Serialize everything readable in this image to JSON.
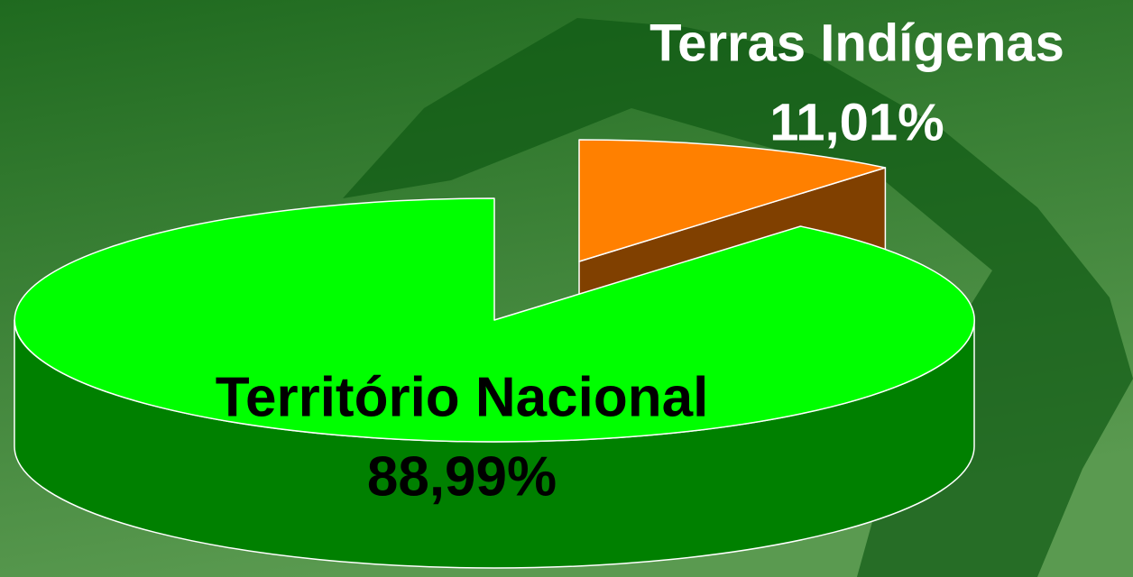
{
  "chart_data": {
    "type": "pie",
    "categories": [
      "Território Nacional",
      "Terras Indígenas"
    ],
    "values": [
      88.99,
      11.01
    ],
    "value_labels": [
      "88,99%",
      "11,01%"
    ],
    "colors": [
      "#00ff00",
      "#ff8000"
    ]
  }
}
